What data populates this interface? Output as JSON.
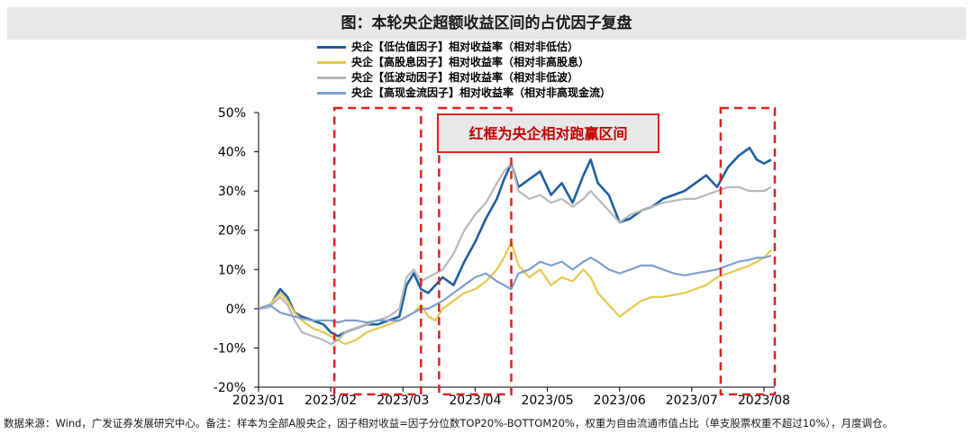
{
  "header": {
    "title": "图：本轮央企超额收益区间的占优因子复盘"
  },
  "footnote": "数据来源：Wind，广发证券发展研究中心。备注：样本为全部A股央企，因子相对收益=因子分位数TOP20%-BOTTOM20%，权重为自由流通市值占比（单支股票权重不超过10%），月度调仓。",
  "colors": {
    "annotation_red": "#e02020",
    "annotation_box_bg": "#e8e8e8"
  },
  "chart_data": {
    "type": "line",
    "title": "",
    "xlabel": "",
    "ylabel": "",
    "ylim": [
      -20,
      50
    ],
    "yticks": [
      "50%",
      "40%",
      "30%",
      "20%",
      "10%",
      "0%",
      "-10%",
      "-20%"
    ],
    "ytick_values": [
      50,
      40,
      30,
      20,
      10,
      0,
      -10,
      -20
    ],
    "xticks": [
      "2023/01",
      "2023/02",
      "2023/03",
      "2023/04",
      "2023/05",
      "2023/06",
      "2023/07",
      "2023/08"
    ],
    "xtick_positions": [
      0,
      1,
      2,
      3,
      4,
      5,
      6,
      7
    ],
    "xlim": [
      0,
      7.15
    ],
    "grid": false,
    "legend_position": "top",
    "annotation": {
      "text": "红框为央企相对跑赢区间"
    },
    "highlight_ranges": [
      [
        1.05,
        2.25
      ],
      [
        2.5,
        3.5
      ],
      [
        6.4,
        7.15
      ]
    ],
    "series": [
      {
        "name": "央企【低估值因子】相对收益率（相对非低估）",
        "color": "#1f5f9e",
        "x": [
          0,
          0.15,
          0.3,
          0.4,
          0.5,
          0.6,
          0.75,
          0.9,
          1.0,
          1.1,
          1.2,
          1.35,
          1.5,
          1.65,
          1.8,
          1.95,
          2.05,
          2.15,
          2.25,
          2.35,
          2.45,
          2.55,
          2.7,
          2.85,
          3.0,
          3.15,
          3.3,
          3.4,
          3.5,
          3.6,
          3.75,
          3.9,
          4.05,
          4.2,
          4.35,
          4.5,
          4.6,
          4.7,
          4.85,
          5.0,
          5.15,
          5.3,
          5.45,
          5.6,
          5.75,
          5.9,
          6.05,
          6.2,
          6.35,
          6.5,
          6.65,
          6.8,
          6.9,
          7.0,
          7.1
        ],
        "y": [
          0,
          0.5,
          5,
          3,
          -1,
          -2,
          -3,
          -4,
          -6,
          -7,
          -6,
          -5,
          -4,
          -4,
          -3,
          -2,
          6,
          9,
          5,
          4,
          6,
          8,
          6,
          12,
          17,
          23,
          28,
          33,
          37,
          31,
          33,
          35,
          29,
          32,
          27,
          34,
          38,
          32,
          29,
          22,
          23,
          25,
          26,
          28,
          29,
          30,
          32,
          34,
          31,
          36,
          39,
          41,
          38,
          37,
          38
        ]
      },
      {
        "name": "央企【高股息因子】相对收益率（相对非高股息）",
        "color": "#e8c84a",
        "x": [
          0,
          0.15,
          0.3,
          0.4,
          0.5,
          0.6,
          0.75,
          0.9,
          1.0,
          1.1,
          1.2,
          1.35,
          1.5,
          1.65,
          1.8,
          1.95,
          2.05,
          2.15,
          2.25,
          2.35,
          2.45,
          2.55,
          2.7,
          2.85,
          3.0,
          3.15,
          3.3,
          3.4,
          3.5,
          3.6,
          3.75,
          3.9,
          4.05,
          4.2,
          4.35,
          4.5,
          4.6,
          4.7,
          4.85,
          5.0,
          5.15,
          5.3,
          5.45,
          5.6,
          5.75,
          5.9,
          6.05,
          6.2,
          6.35,
          6.5,
          6.65,
          6.8,
          6.9,
          7.0,
          7.1
        ],
        "y": [
          0,
          1,
          4,
          2,
          -1,
          -3,
          -5,
          -6,
          -7,
          -8,
          -9,
          -8,
          -6,
          -5,
          -4,
          -3,
          -2,
          -1,
          1,
          -2,
          -3,
          0,
          2,
          4,
          5,
          7,
          10,
          13,
          17,
          11,
          8,
          10,
          6,
          8,
          7,
          10,
          8,
          4,
          1,
          -2,
          0,
          2,
          3,
          3,
          3.5,
          4,
          5,
          6,
          8,
          9,
          10,
          11,
          12,
          13,
          15
        ]
      },
      {
        "name": "央企【低波动因子】相对收益率（相对非低波）",
        "color": "#b8b8b8",
        "x": [
          0,
          0.15,
          0.3,
          0.4,
          0.5,
          0.6,
          0.75,
          0.9,
          1.0,
          1.1,
          1.2,
          1.35,
          1.5,
          1.65,
          1.8,
          1.95,
          2.05,
          2.15,
          2.25,
          2.35,
          2.45,
          2.55,
          2.7,
          2.85,
          3.0,
          3.15,
          3.3,
          3.4,
          3.5,
          3.6,
          3.75,
          3.9,
          4.05,
          4.2,
          4.35,
          4.5,
          4.6,
          4.7,
          4.85,
          5.0,
          5.15,
          5.3,
          5.45,
          5.6,
          5.75,
          5.9,
          6.05,
          6.2,
          6.35,
          6.5,
          6.65,
          6.8,
          6.9,
          7.0,
          7.1
        ],
        "y": [
          0,
          0.5,
          3,
          1,
          -3,
          -6,
          -7,
          -8,
          -9,
          -8,
          -6,
          -5,
          -4,
          -3,
          -2,
          0,
          8,
          10,
          7,
          8,
          9,
          10,
          14,
          20,
          24,
          27,
          32,
          35,
          37,
          30,
          28,
          29,
          27,
          28,
          26,
          28,
          30,
          28,
          25,
          22,
          24,
          25,
          26,
          27,
          27.5,
          28,
          28,
          29,
          30,
          31,
          31,
          30,
          30,
          30,
          31
        ]
      },
      {
        "name": "央企【高现金流因子】相对收益率（相对非高现金流）",
        "color": "#7f9fcf",
        "x": [
          0,
          0.15,
          0.3,
          0.4,
          0.5,
          0.6,
          0.75,
          0.9,
          1.0,
          1.1,
          1.2,
          1.35,
          1.5,
          1.65,
          1.8,
          1.95,
          2.05,
          2.15,
          2.25,
          2.35,
          2.45,
          2.55,
          2.7,
          2.85,
          3.0,
          3.15,
          3.3,
          3.4,
          3.5,
          3.6,
          3.75,
          3.9,
          4.05,
          4.2,
          4.35,
          4.5,
          4.6,
          4.7,
          4.85,
          5.0,
          5.15,
          5.3,
          5.45,
          5.6,
          5.75,
          5.9,
          6.05,
          6.2,
          6.35,
          6.5,
          6.65,
          6.8,
          6.9,
          7.0,
          7.1
        ],
        "y": [
          0,
          1,
          -1,
          -1.5,
          -2,
          -2.5,
          -3,
          -3,
          -3,
          -3.5,
          -3,
          -3,
          -3.5,
          -3,
          -3,
          -3,
          -2,
          -1,
          0,
          0,
          1,
          2,
          4,
          6,
          8,
          9,
          7,
          6,
          5,
          9,
          10,
          12,
          11,
          12,
          10,
          12,
          13,
          12,
          10,
          9,
          10,
          11,
          11,
          10,
          9,
          8.5,
          9,
          9.5,
          10,
          11,
          12,
          12.5,
          13,
          13,
          13.5
        ]
      }
    ]
  }
}
